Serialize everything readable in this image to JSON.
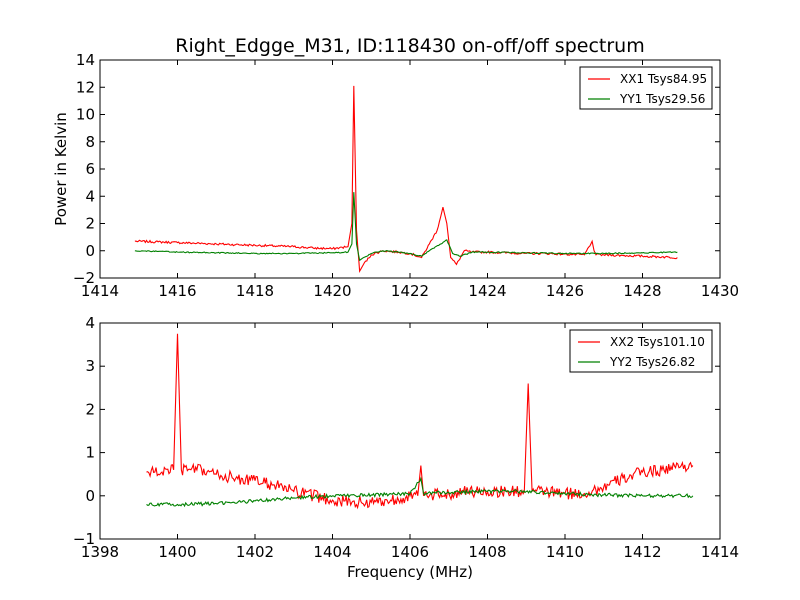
{
  "figure": {
    "title": "Right_Edgge_M31, ID:118430 on-off/off spectrum"
  },
  "chart_data": [
    {
      "type": "line",
      "title": "Right_Edgge_M31, ID:118430 on-off/off spectrum",
      "xlabel": "",
      "ylabel": "Power in Kelvin",
      "xlim": [
        1414,
        1430
      ],
      "ylim": [
        -2,
        14
      ],
      "xticks": [
        "1414",
        "1416",
        "1418",
        "1420",
        "1422",
        "1424",
        "1426",
        "1428",
        "1430"
      ],
      "yticks": [
        "−2",
        "0",
        "2",
        "4",
        "6",
        "8",
        "10",
        "12",
        "14"
      ],
      "legend_position": "top-right",
      "series": [
        {
          "name": "XX1 Tsys84.95",
          "color": "#ff0000",
          "x": [
            1414.9,
            1415.5,
            1416.0,
            1416.5,
            1417.0,
            1417.5,
            1418.0,
            1418.5,
            1419.0,
            1419.5,
            1420.0,
            1420.4,
            1420.5,
            1420.55,
            1420.62,
            1420.7,
            1420.8,
            1421.0,
            1421.3,
            1421.7,
            1422.0,
            1422.3,
            1422.5,
            1422.7,
            1422.85,
            1422.95,
            1423.05,
            1423.2,
            1423.4,
            1423.6,
            1424.0,
            1424.5,
            1425.0,
            1425.5,
            1426.0,
            1426.5,
            1426.7,
            1426.75,
            1426.8,
            1427.0,
            1427.5,
            1428.0,
            1428.5,
            1428.9
          ],
          "y": [
            0.7,
            0.65,
            0.6,
            0.55,
            0.5,
            0.45,
            0.4,
            0.35,
            0.3,
            0.2,
            0.15,
            0.3,
            2.0,
            12.1,
            1.5,
            -1.5,
            -1.0,
            -0.3,
            0.0,
            -0.1,
            -0.2,
            -0.5,
            0.5,
            1.5,
            3.2,
            2.0,
            -0.5,
            -1.0,
            0.0,
            -0.1,
            -0.1,
            -0.15,
            -0.2,
            -0.2,
            -0.25,
            -0.3,
            0.7,
            0.0,
            -0.3,
            -0.3,
            -0.35,
            -0.4,
            -0.45,
            -0.5
          ]
        },
        {
          "name": "YY1 Tsys29.56",
          "color": "#008000",
          "x": [
            1414.9,
            1415.5,
            1416.0,
            1417.0,
            1418.0,
            1419.0,
            1420.0,
            1420.4,
            1420.5,
            1420.55,
            1420.62,
            1420.7,
            1420.8,
            1421.0,
            1421.3,
            1421.7,
            1422.0,
            1422.3,
            1422.5,
            1422.8,
            1422.95,
            1423.1,
            1423.3,
            1423.6,
            1424.0,
            1425.0,
            1426.0,
            1427.0,
            1428.0,
            1428.9
          ],
          "y": [
            0.0,
            -0.05,
            -0.1,
            -0.15,
            -0.2,
            -0.2,
            -0.15,
            -0.1,
            0.5,
            4.3,
            0.5,
            -0.7,
            -0.5,
            -0.2,
            0.0,
            -0.1,
            -0.2,
            -0.4,
            0.0,
            0.5,
            0.8,
            -0.2,
            -0.4,
            -0.1,
            -0.1,
            -0.15,
            -0.2,
            -0.2,
            -0.15,
            -0.1
          ]
        }
      ]
    },
    {
      "type": "line",
      "title": "",
      "xlabel": "Frequency (MHz)",
      "ylabel": "",
      "xlim": [
        1398,
        1414
      ],
      "ylim": [
        -1,
        4
      ],
      "xticks": [
        "1398",
        "1400",
        "1402",
        "1404",
        "1406",
        "1408",
        "1410",
        "1412",
        "1414"
      ],
      "yticks": [
        "−1",
        "0",
        "1",
        "2",
        "3",
        "4"
      ],
      "legend_position": "top-right",
      "series": [
        {
          "name": "XX2 Tsys101.10",
          "color": "#ff0000",
          "x": [
            1399.2,
            1399.6,
            1399.9,
            1400.0,
            1400.1,
            1400.5,
            1401.0,
            1401.5,
            1402.0,
            1402.5,
            1403.0,
            1403.5,
            1404.0,
            1404.5,
            1405.0,
            1405.5,
            1406.0,
            1406.2,
            1406.28,
            1406.35,
            1406.5,
            1407.0,
            1407.5,
            1408.0,
            1408.5,
            1408.95,
            1409.05,
            1409.15,
            1409.5,
            1410.0,
            1410.5,
            1411.0,
            1411.5,
            1412.0,
            1412.5,
            1413.0,
            1413.3
          ],
          "y": [
            0.55,
            0.55,
            0.6,
            3.75,
            0.6,
            0.6,
            0.5,
            0.4,
            0.35,
            0.25,
            0.1,
            0.0,
            -0.1,
            -0.15,
            -0.15,
            -0.1,
            0.0,
            0.0,
            0.7,
            0.0,
            0.0,
            0.05,
            0.1,
            0.1,
            0.1,
            0.1,
            2.6,
            0.1,
            0.1,
            0.05,
            0.05,
            0.2,
            0.4,
            0.55,
            0.6,
            0.7,
            0.7
          ]
        },
        {
          "name": "YY2 Tsys26.82",
          "color": "#008000",
          "x": [
            1399.2,
            1400.0,
            1401.0,
            1402.0,
            1403.0,
            1404.0,
            1405.0,
            1406.0,
            1406.28,
            1406.35,
            1407.0,
            1408.0,
            1409.0,
            1410.0,
            1411.0,
            1412.0,
            1413.0,
            1413.3
          ],
          "y": [
            -0.2,
            -0.2,
            -0.18,
            -0.12,
            -0.05,
            0.0,
            0.02,
            0.05,
            0.4,
            0.05,
            0.08,
            0.1,
            0.1,
            0.05,
            0.02,
            0.0,
            0.0,
            0.0
          ]
        }
      ]
    }
  ]
}
